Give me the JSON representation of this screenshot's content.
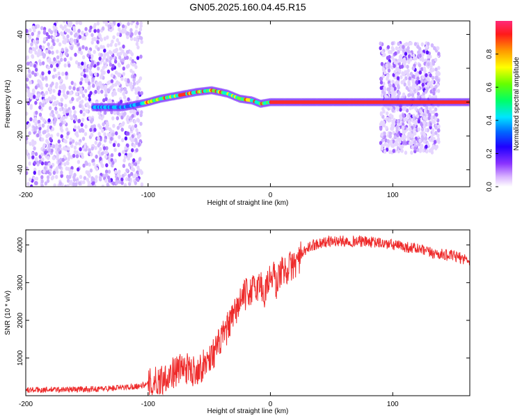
{
  "title": "GN05.2025.160.04.45.R15",
  "colors": {
    "snr_line": "#ee2b2b",
    "spec_low": "#7f33ff",
    "spec_mid": "#00ffee",
    "spec_high": "#ff0033"
  },
  "chart_data": [
    {
      "type": "heatmap",
      "xlabel": "Height of straight line (km)",
      "ylabel": "Frequency (Hz)",
      "xlim": [
        -200,
        163
      ],
      "ylim": [
        -50,
        48
      ],
      "x_ticks": [
        -200,
        -100,
        0,
        100
      ],
      "y_ticks": [
        -40,
        -20,
        0,
        20,
        40
      ],
      "colorbar": {
        "label": "Normalized spectral amplitude",
        "range": [
          0,
          1
        ],
        "ticks": [
          "0.0",
          "0.2",
          "0.4",
          "0.6",
          "0.8"
        ],
        "tick_values": [
          0.0,
          0.2,
          0.4,
          0.6,
          0.8
        ]
      },
      "ridge": [
        {
          "x": -145,
          "y": -3
        },
        {
          "x": -120,
          "y": -3
        },
        {
          "x": -100,
          "y": 0
        },
        {
          "x": -90,
          "y": 2
        },
        {
          "x": -75,
          "y": 4
        },
        {
          "x": -60,
          "y": 6
        },
        {
          "x": -48,
          "y": 7
        },
        {
          "x": -35,
          "y": 5
        },
        {
          "x": -25,
          "y": 2
        },
        {
          "x": -15,
          "y": 1
        },
        {
          "x": -8,
          "y": -1
        },
        {
          "x": 0,
          "y": 0
        },
        {
          "x": 50,
          "y": 0
        },
        {
          "x": 100,
          "y": 0
        },
        {
          "x": 163,
          "y": 0
        }
      ],
      "noise_bands": [
        {
          "x_range": [
            -200,
            -105
          ],
          "y_range": [
            -50,
            48
          ]
        },
        {
          "x_range": [
            90,
            138
          ],
          "y_range": [
            -30,
            35
          ]
        }
      ]
    },
    {
      "type": "line",
      "xlabel": "Height of straight line (km)",
      "ylabel": "SNR (10 * v/v)",
      "xlim": [
        -200,
        163
      ],
      "ylim": [
        0,
        4400
      ],
      "x_ticks": [
        -200,
        -100,
        0,
        100
      ],
      "y_ticks": [
        1000,
        2000,
        3000,
        4000
      ],
      "series": [
        {
          "x": [
            -200,
            -180,
            -160,
            -140,
            -120,
            -110,
            -100,
            -95,
            -90,
            -85,
            -80,
            -75,
            -70,
            -65,
            -60,
            -55,
            -50,
            -45,
            -40,
            -35,
            -30,
            -25,
            -20,
            -15,
            -10,
            -8,
            -5,
            -3,
            0,
            3,
            5,
            8,
            10,
            15,
            20,
            25,
            30,
            35,
            40,
            50,
            60,
            70,
            80,
            90,
            100,
            110,
            120,
            130,
            140,
            150,
            163
          ],
          "y": [
            150,
            160,
            170,
            180,
            220,
            250,
            300,
            350,
            420,
            520,
            600,
            700,
            750,
            650,
            700,
            800,
            1000,
            1200,
            1500,
            1800,
            2100,
            2500,
            2700,
            2800,
            2900,
            3000,
            2600,
            3000,
            3100,
            3200,
            2900,
            3300,
            3300,
            3400,
            3500,
            3700,
            3900,
            4000,
            4050,
            4100,
            4100,
            4100,
            4080,
            4050,
            4000,
            3950,
            3900,
            3800,
            3750,
            3700,
            3600
          ]
        }
      ]
    }
  ]
}
